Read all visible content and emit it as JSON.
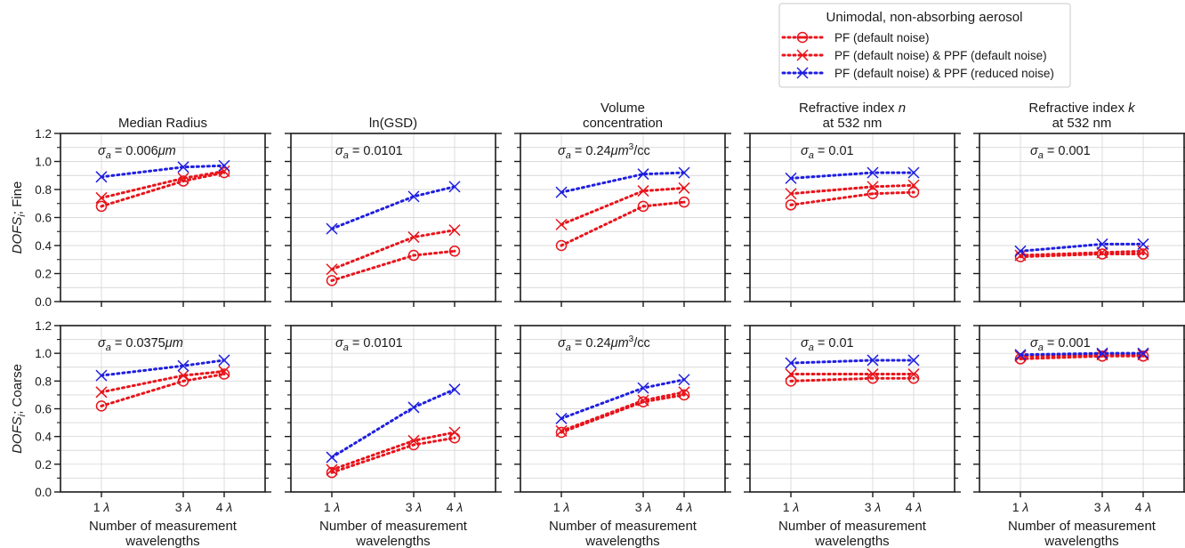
{
  "legend": {
    "title": "Unimodal, non-absorbing aerosol",
    "entries": [
      {
        "label": "PF (default noise)",
        "color": "#e8141b",
        "marker": "circle-dot"
      },
      {
        "label": "PF (default noise) & PPF (default noise)",
        "color": "#e8141b",
        "marker": "x"
      },
      {
        "label": "PF (default noise) & PPF (reduced noise)",
        "color": "#1f1fe0",
        "marker": "x"
      }
    ]
  },
  "colors": {
    "red": "#e8141b",
    "blue": "#1f1fe0",
    "grid": "#d9d9d9",
    "axis": "#1a1a1a"
  },
  "chart_data": {
    "type": "line",
    "categories": [
      "1 λ",
      "3 λ",
      "4 λ"
    ],
    "x": [
      1,
      3,
      4
    ],
    "xlim": [
      0,
      5
    ],
    "ylim": [
      0,
      1.2
    ],
    "yticks": [
      "0.0",
      "0.2",
      "0.4",
      "0.6",
      "0.8",
      "1.0",
      "1.2"
    ],
    "xlabel_line1": "Number of measurement",
    "xlabel_line2": "wavelengths",
    "rows": [
      {
        "ylabel": "DOFSᵢ; Fine",
        "ylabel_main": "DOFS",
        "ylabel_sub": "i",
        "ylabel_rest": "; Fine"
      },
      {
        "ylabel": "DOFSᵢ; Coarse",
        "ylabel_main": "DOFS",
        "ylabel_sub": "i",
        "ylabel_rest": "; Coarse"
      }
    ],
    "columns": [
      {
        "title_line1": "Median Radius",
        "title_line2": ""
      },
      {
        "title_line1": "ln(GSD)",
        "title_line2": ""
      },
      {
        "title_line1": "Volume",
        "title_line2": "concentration"
      },
      {
        "title_line1": "Refractive index n",
        "title_line2": "at 532 nm"
      },
      {
        "title_line1": "Refractive index k",
        "title_line2": "at 532 nm"
      }
    ],
    "panels": [
      {
        "row": 0,
        "col": 0,
        "annotation": "σa = 0.006μm",
        "ann_value": " = 0.006μm",
        "series": [
          {
            "values": [
              0.68,
              0.86,
              0.92
            ]
          },
          {
            "values": [
              0.74,
              0.88,
              0.93
            ]
          },
          {
            "values": [
              0.89,
              0.96,
              0.97
            ]
          }
        ]
      },
      {
        "row": 0,
        "col": 1,
        "annotation": "σa = 0.0101",
        "ann_value": " = 0.0101",
        "series": [
          {
            "values": [
              0.15,
              0.33,
              0.36
            ]
          },
          {
            "values": [
              0.23,
              0.46,
              0.51
            ]
          },
          {
            "values": [
              0.52,
              0.75,
              0.82
            ]
          }
        ]
      },
      {
        "row": 0,
        "col": 2,
        "annotation": "σa = 0.24μm3/cc",
        "ann_value": " = 0.24μm³/cc",
        "series": [
          {
            "values": [
              0.4,
              0.68,
              0.71
            ]
          },
          {
            "values": [
              0.55,
              0.79,
              0.81
            ]
          },
          {
            "values": [
              0.78,
              0.91,
              0.92
            ]
          }
        ]
      },
      {
        "row": 0,
        "col": 3,
        "annotation": "σa = 0.01",
        "ann_value": " = 0.01",
        "series": [
          {
            "values": [
              0.69,
              0.77,
              0.78
            ]
          },
          {
            "values": [
              0.77,
              0.82,
              0.83
            ]
          },
          {
            "values": [
              0.88,
              0.92,
              0.92
            ]
          }
        ]
      },
      {
        "row": 0,
        "col": 4,
        "annotation": "σa = 0.001",
        "ann_value": " = 0.001",
        "series": [
          {
            "values": [
              0.32,
              0.34,
              0.34
            ]
          },
          {
            "values": [
              0.33,
              0.35,
              0.36
            ]
          },
          {
            "values": [
              0.36,
              0.41,
              0.41
            ]
          }
        ]
      },
      {
        "row": 1,
        "col": 0,
        "annotation": "σa = 0.0375μm",
        "ann_value": " = 0.0375μm",
        "series": [
          {
            "values": [
              0.62,
              0.8,
              0.85
            ]
          },
          {
            "values": [
              0.72,
              0.84,
              0.87
            ]
          },
          {
            "values": [
              0.84,
              0.91,
              0.95
            ]
          }
        ]
      },
      {
        "row": 1,
        "col": 1,
        "annotation": "σa = 0.0101",
        "ann_value": " = 0.0101",
        "series": [
          {
            "values": [
              0.14,
              0.34,
              0.39
            ]
          },
          {
            "values": [
              0.16,
              0.37,
              0.43
            ]
          },
          {
            "values": [
              0.25,
              0.61,
              0.74
            ]
          }
        ]
      },
      {
        "row": 1,
        "col": 2,
        "annotation": "σa = 0.24μm3/cc",
        "ann_value": " = 0.24μm³/cc",
        "series": [
          {
            "values": [
              0.43,
              0.65,
              0.7
            ]
          },
          {
            "values": [
              0.44,
              0.66,
              0.72
            ]
          },
          {
            "values": [
              0.53,
              0.75,
              0.81
            ]
          }
        ]
      },
      {
        "row": 1,
        "col": 3,
        "annotation": "σa = 0.01",
        "ann_value": " = 0.01",
        "series": [
          {
            "values": [
              0.8,
              0.82,
              0.82
            ]
          },
          {
            "values": [
              0.85,
              0.85,
              0.85
            ]
          },
          {
            "values": [
              0.93,
              0.95,
              0.95
            ]
          }
        ]
      },
      {
        "row": 1,
        "col": 4,
        "annotation": "σa = 0.001",
        "ann_value": " = 0.001",
        "series": [
          {
            "values": [
              0.96,
              0.98,
              0.98
            ]
          },
          {
            "values": [
              0.98,
              0.99,
              0.99
            ]
          },
          {
            "values": [
              0.99,
              1.0,
              1.0
            ]
          }
        ]
      }
    ]
  }
}
